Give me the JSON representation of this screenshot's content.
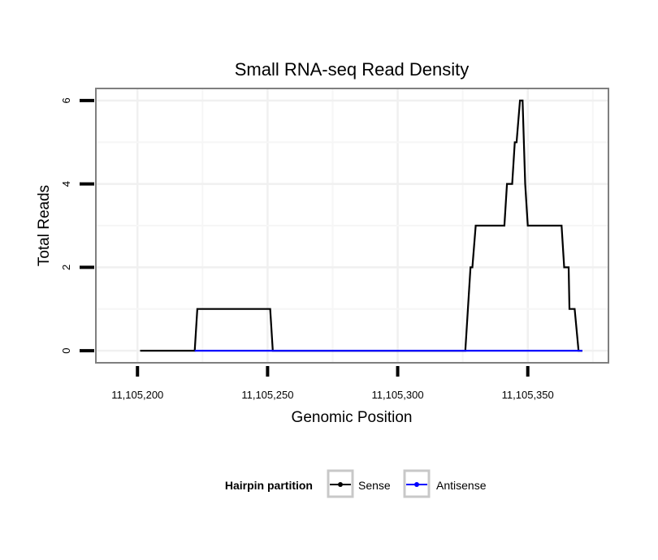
{
  "chart_data": {
    "type": "line",
    "title": "Small RNA-seq Read Density",
    "xlabel": "Genomic Position",
    "ylabel": "Total Reads",
    "xlim": [
      11105184,
      11105381
    ],
    "ylim": [
      -0.29,
      6.29
    ],
    "x_ticks": [
      {
        "value": 11105200,
        "label": "11,105,200"
      },
      {
        "value": 11105250,
        "label": "11,105,250"
      },
      {
        "value": 11105300,
        "label": "11,105,300"
      },
      {
        "value": 11105350,
        "label": "11,105,350"
      }
    ],
    "y_ticks": [
      {
        "value": 0,
        "label": "0"
      },
      {
        "value": 2,
        "label": "2"
      },
      {
        "value": 4,
        "label": "4"
      },
      {
        "value": 6,
        "label": "6"
      }
    ],
    "grid": true,
    "legend": {
      "title": "Hairpin partition",
      "position": "bottom",
      "entries": [
        {
          "name": "Sense",
          "color": "#000000"
        },
        {
          "name": "Antisense",
          "color": "#0000ff"
        }
      ]
    },
    "series": [
      {
        "name": "Sense",
        "color": "#000000",
        "x": [
          11105201,
          11105222,
          11105223,
          11105251,
          11105252,
          11105326,
          11105328,
          11105328.7,
          11105330,
          11105341,
          11105342,
          11105344,
          11105345,
          11105345.7,
          11105347,
          11105348,
          11105349,
          11105350,
          11105363,
          11105364,
          11105365.7,
          11105366,
          11105368,
          11105369.5,
          11105371
        ],
        "y": [
          0,
          0,
          1,
          1,
          0,
          0,
          2,
          2,
          3,
          3,
          4,
          4,
          5,
          5,
          6,
          6,
          4,
          3,
          3,
          2,
          2,
          1,
          1,
          0,
          0
        ]
      },
      {
        "name": "Antisense",
        "color": "#0000ff",
        "x": [
          11105222,
          11105371
        ],
        "y": [
          0,
          0
        ]
      }
    ]
  }
}
